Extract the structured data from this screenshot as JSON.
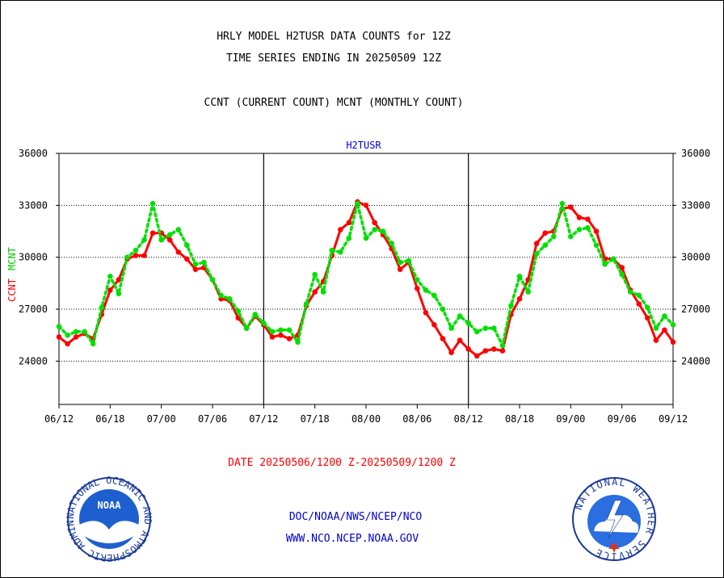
{
  "header": {
    "line1": "HRLY MODEL H2TUSR DATA COUNTS for 12Z",
    "line2": "TIME SERIES ENDING IN 20250509 12Z",
    "line3": "CCNT (CURRENT COUNT) MCNT (MONTHLY COUNT)"
  },
  "footer": {
    "date_range": "DATE 20250506/1200 Z-20250509/1200 Z",
    "org_path": "DOC/NOAA/NWS/NCEP/NCO",
    "website": "WWW.NCO.NCEP.NOAA.GOV",
    "noaa_logo_text": "NOAA",
    "noaa_ring_text": "NATIONAL OCEANIC AND ATMOSPHERIC ADMINISTRATION · U.S. DEPARTMENT OF COMMERCE ·",
    "nws_ring_text": "NATIONAL WEATHER SERVICE"
  },
  "colors": {
    "ccnt": "#ff0000",
    "mcnt": "#00e000",
    "panel_title": "#0000cc",
    "footer_text": "#0000cc",
    "date_text": "#ff0000"
  },
  "chart_data": {
    "type": "line",
    "title": "H2TUSR",
    "ylabel_ccnt": "CCNT",
    "ylabel_mcnt": "MCNT",
    "ylim": [
      21500,
      36000
    ],
    "yticks": [
      "36000",
      "33000",
      "30000",
      "27000",
      "24000"
    ],
    "ytick_values": [
      36000,
      33000,
      30000,
      27000,
      24000
    ],
    "xticks": [
      "06/12",
      "06/18",
      "07/00",
      "07/06",
      "07/12",
      "07/18",
      "08/00",
      "08/06",
      "08/12",
      "08/18",
      "09/00",
      "09/06",
      "09/12"
    ],
    "day_dividers": [
      "07/12",
      "08/12"
    ],
    "grid": true,
    "series": [
      {
        "name": "CCNT",
        "color": "#ff0000",
        "style": "solid",
        "values": [
          25400,
          25000,
          25400,
          25600,
          25300,
          26700,
          28100,
          28700,
          29900,
          30100,
          30100,
          31400,
          31400,
          31000,
          30300,
          29900,
          29300,
          29400,
          28700,
          27600,
          27500,
          26500,
          25900,
          26600,
          26100,
          25400,
          25500,
          25300,
          25500,
          27200,
          28000,
          28600,
          30100,
          31600,
          32000,
          33200,
          33000,
          32000,
          31300,
          30500,
          29300,
          29700,
          28200,
          26800,
          26100,
          25300,
          24500,
          25200,
          24700,
          24300,
          24600,
          24700,
          24600,
          26700,
          27600,
          28700,
          30800,
          31400,
          31500,
          32800,
          32900,
          32300,
          32200,
          31500,
          29900,
          29900,
          29400,
          28100,
          27300,
          26500,
          25200,
          25800,
          25100
        ]
      },
      {
        "name": "MCNT",
        "color": "#00e000",
        "style": "dotted",
        "values": [
          26000,
          25500,
          25700,
          25700,
          25000,
          27100,
          28900,
          27900,
          30000,
          30400,
          31000,
          33100,
          31000,
          31300,
          31600,
          30700,
          29600,
          29700,
          28700,
          27800,
          27600,
          26900,
          25900,
          26700,
          26200,
          25700,
          25800,
          25800,
          25100,
          27300,
          29000,
          28000,
          30400,
          30300,
          31100,
          33100,
          31100,
          31600,
          31500,
          30800,
          29700,
          29800,
          28700,
          28100,
          27800,
          27000,
          25900,
          26600,
          26200,
          25700,
          25900,
          25900,
          24900,
          27200,
          28900,
          28000,
          30200,
          30700,
          31200,
          33100,
          31200,
          31600,
          31700,
          30700,
          29600,
          29900,
          29000,
          28000,
          27800,
          27100,
          25900,
          26600,
          26100
        ]
      }
    ]
  }
}
